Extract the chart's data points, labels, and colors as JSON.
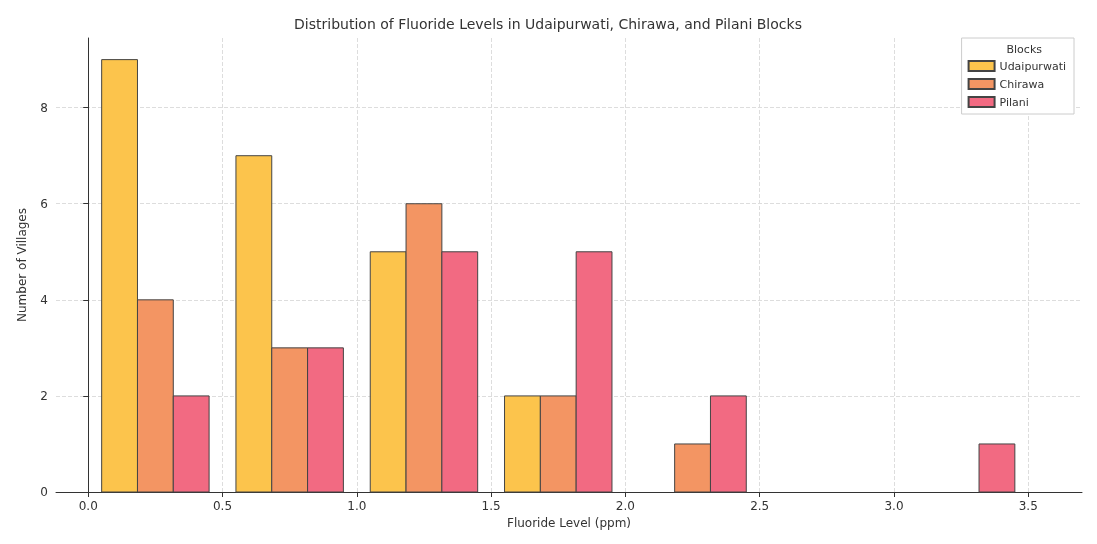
{
  "chart_data": {
    "type": "histogram",
    "title": "Distribution of Fluoride Levels in Udaipurwati, Chirawa, and Pilani Blocks",
    "xlabel": "Fluoride Level (ppm)",
    "ylabel": "Number of Villages",
    "legend_title": "Blocks",
    "bins": [
      0,
      0.5,
      1.0,
      1.5,
      2.0,
      2.5,
      3.0,
      3.5
    ],
    "series": [
      {
        "name": "Udaipurwati",
        "color": "#fcc44c",
        "values": [
          9,
          7,
          5,
          2,
          0,
          0,
          0
        ]
      },
      {
        "name": "Chirawa",
        "color": "#f39563",
        "values": [
          4,
          3,
          6,
          2,
          1,
          0,
          0
        ]
      },
      {
        "name": "Pilani",
        "color": "#f26a82",
        "values": [
          2,
          3,
          5,
          5,
          2,
          0,
          1
        ]
      }
    ],
    "xlim": [
      -0.12,
      3.7
    ],
    "xticks": [
      {
        "value": 0,
        "label": "0.0"
      },
      {
        "value": 0.5,
        "label": "0.5"
      },
      {
        "value": 1,
        "label": "1.0"
      },
      {
        "value": 1.5,
        "label": "1.5"
      },
      {
        "value": 2,
        "label": "2.0"
      },
      {
        "value": 2.5,
        "label": "2.5"
      },
      {
        "value": 3,
        "label": "3.0"
      },
      {
        "value": 3.5,
        "label": "3.5"
      }
    ],
    "ylim": [
      0,
      9.45
    ],
    "yticks": [
      0,
      2,
      4,
      6,
      8
    ],
    "grid": true,
    "legend": "top right"
  }
}
